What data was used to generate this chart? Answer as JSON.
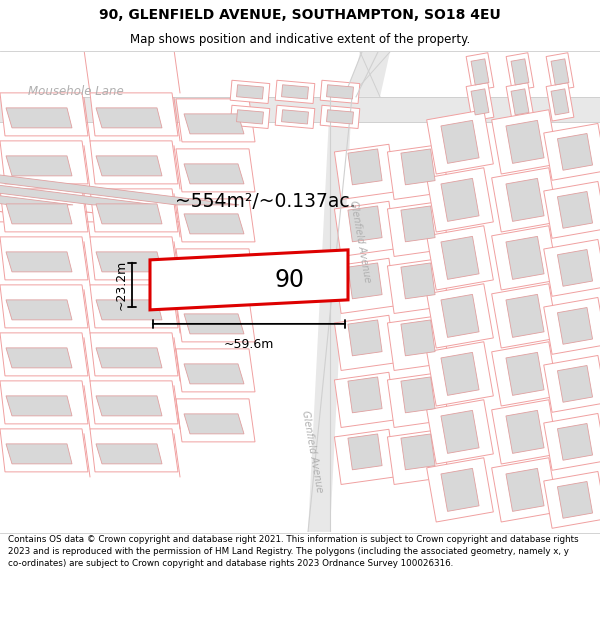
{
  "title": "90, GLENFIELD AVENUE, SOUTHAMPTON, SO18 4EU",
  "subtitle": "Map shows position and indicative extent of the property.",
  "footer": "Contains OS data © Crown copyright and database right 2021. This information is subject to Crown copyright and database rights 2023 and is reproduced with the permission of HM Land Registry. The polygons (including the associated geometry, namely x, y co-ordinates) are subject to Crown copyright and database rights 2023 Ordnance Survey 100026316.",
  "area_text": "~554m²/~0.137ac.",
  "width_text": "~59.6m",
  "height_text": "~23.2m",
  "label_90": "90",
  "mousehole_lane": "Mousehole Lane",
  "glenfield_avenue": "Glenfield Avenue",
  "glenfield_avenue2": "Glenfield Avenue",
  "plot_color": "#f0a0a0",
  "building_fill": "#d8d8d8",
  "building_edge": "#e0a0a0",
  "road_fill": "#e8e8e8",
  "road_edge": "#d0d0d0",
  "highlight_color": "#dd0000",
  "bg_color": "#f9f9f9",
  "white": "#ffffff",
  "text_gray": "#b0b0b0"
}
